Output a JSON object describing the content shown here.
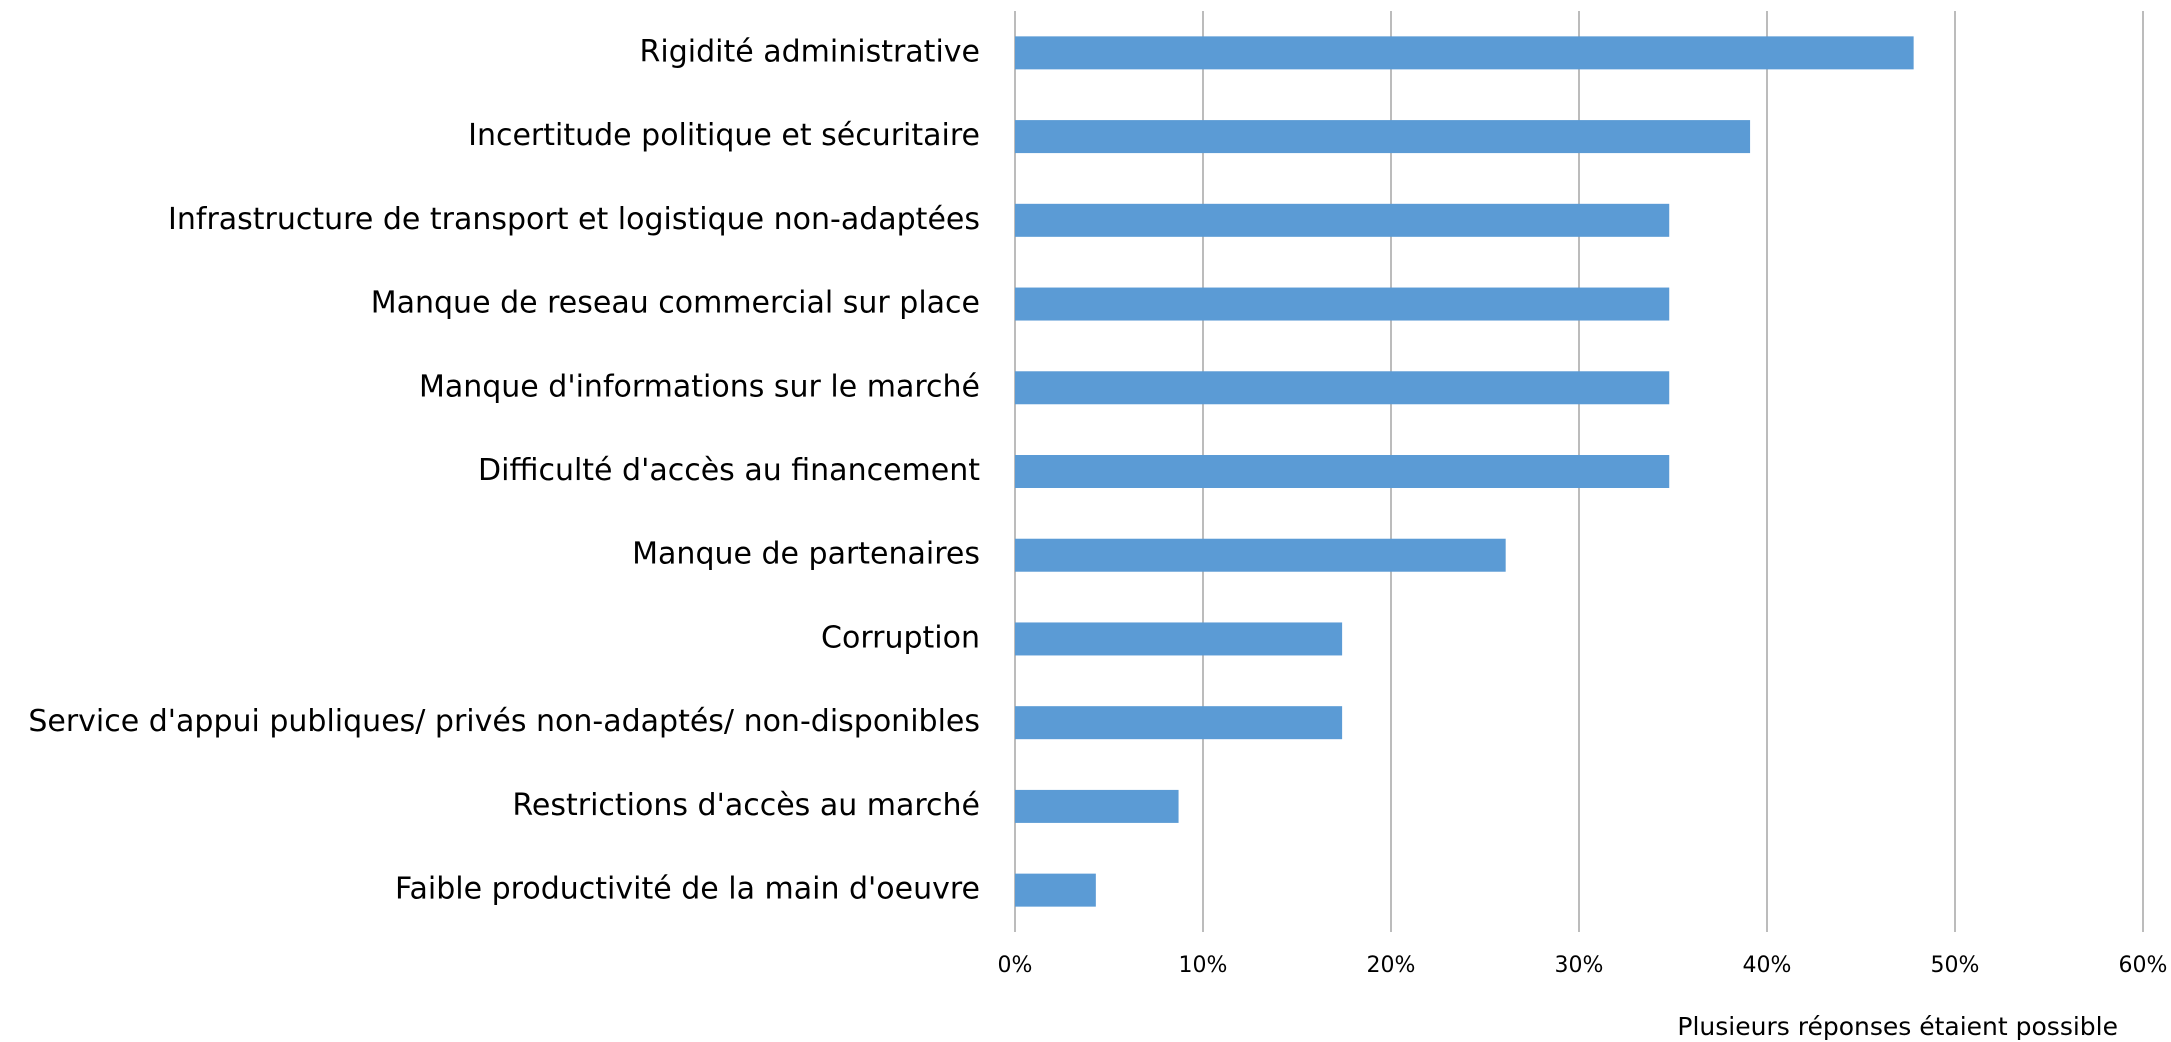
{
  "chart_data": {
    "type": "hbar",
    "categories": [
      "Rigidité administrative",
      "Incertitude politique et sécuritaire",
      "Infrastructure de transport et logistique non-adaptées",
      "Manque de reseau commercial sur place",
      "Manque d'informations sur le marché",
      "Difficulté d'accès au financement",
      "Manque de partenaires",
      "Corruption",
      "Service d'appui publiques/ privés non-adaptés/ non-disponibles",
      "Restrictions d'accès au marché",
      "Faible productivité de la main d'oeuvre"
    ],
    "values": [
      47.8,
      39.1,
      34.8,
      34.8,
      34.8,
      34.8,
      26.1,
      17.4,
      17.4,
      8.7,
      4.3
    ],
    "color": "#5b9bd5",
    "xlim": [
      0,
      60
    ],
    "xticks": [
      {
        "value": 0,
        "label": "0%"
      },
      {
        "value": 10,
        "label": "10%"
      },
      {
        "value": 20,
        "label": "20%"
      },
      {
        "value": 30,
        "label": "30%"
      },
      {
        "value": 40,
        "label": "40%"
      },
      {
        "value": 50,
        "label": "50%"
      },
      {
        "value": 60,
        "label": "60%"
      }
    ],
    "grid": true,
    "annotation": "Plusieurs réponses étaient possible"
  }
}
